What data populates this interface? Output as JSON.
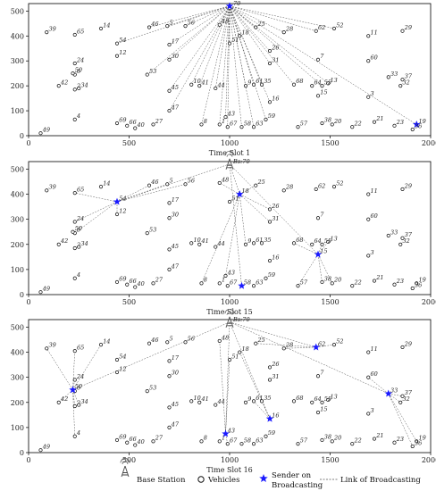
{
  "chart_data": [
    {
      "type": "scatter",
      "xlabel": "Time Slot 1",
      "xlim": [
        0,
        2000
      ],
      "ylim": [
        0,
        530
      ],
      "xticks": [
        0,
        500,
        1000,
        1500,
        2000
      ],
      "yticks": [
        0,
        100,
        200,
        300,
        400,
        500
      ],
      "base_station": {
        "x": 1000,
        "y": 520,
        "label": "70"
      },
      "base_station_label_visible": false,
      "senders": [
        19
      ],
      "links": [
        [
          "bs",
          54
        ],
        [
          "bs",
          46
        ],
        [
          "bs",
          5
        ],
        [
          "bs",
          56
        ],
        [
          "bs",
          17
        ],
        [
          "bs",
          30
        ],
        [
          "bs",
          53
        ],
        [
          "bs",
          48
        ],
        [
          "bs",
          41
        ],
        [
          "bs",
          10
        ],
        [
          "bs",
          45
        ],
        [
          "bs",
          47
        ],
        [
          "bs",
          44
        ],
        [
          "bs",
          1
        ],
        [
          "bs",
          8
        ],
        [
          "bs",
          43
        ],
        [
          "bs",
          51
        ],
        [
          "bs",
          67
        ],
        [
          "bs",
          58
        ],
        [
          "bs",
          63
        ],
        [
          "bs",
          18
        ],
        [
          "bs",
          9
        ],
        [
          "bs",
          61
        ],
        [
          "bs",
          35
        ],
        [
          "bs",
          25
        ],
        [
          "bs",
          16
        ],
        [
          "bs",
          59
        ],
        [
          "bs",
          26
        ],
        [
          "bs",
          31
        ],
        [
          "bs",
          68
        ],
        [
          "bs",
          28
        ],
        [
          "bs",
          55
        ],
        [
          "bs",
          13
        ],
        [
          "bs",
          62
        ],
        [
          "bs",
          52
        ],
        [
          "bs",
          19
        ]
      ]
    },
    {
      "type": "scatter",
      "xlabel": "Time Slot 15",
      "xlim": [
        0,
        2000
      ],
      "ylim": [
        0,
        530
      ],
      "xticks": [
        0,
        500,
        1000,
        1500,
        2000
      ],
      "yticks": [
        0,
        100,
        200,
        300,
        400,
        500
      ],
      "base_station": {
        "x": 1000,
        "y": 520,
        "label": "70"
      },
      "base_station_label_visible": true,
      "senders": [
        54,
        18,
        15,
        58
      ],
      "links": [
        [
          "bs",
          54
        ],
        [
          "bs",
          18
        ],
        [
          "bs",
          15
        ],
        [
          "bs",
          58
        ],
        [
          54,
          65
        ],
        [
          54,
          24
        ],
        [
          54,
          6
        ],
        [
          54,
          12
        ],
        [
          54,
          5
        ],
        [
          54,
          46
        ],
        [
          54,
          56
        ],
        [
          18,
          51
        ],
        [
          18,
          26
        ],
        [
          18,
          31
        ],
        [
          18,
          25
        ],
        [
          18,
          48
        ],
        [
          18,
          8
        ],
        [
          18,
          43
        ],
        [
          18,
          9
        ],
        [
          15,
          55
        ],
        [
          15,
          13
        ],
        [
          15,
          68
        ],
        [
          15,
          38
        ],
        [
          15,
          20
        ],
        [
          15,
          57
        ]
      ]
    },
    {
      "type": "scatter",
      "xlabel": "Time Slot 16",
      "xlim": [
        0,
        2000
      ],
      "ylim": [
        0,
        530
      ],
      "xticks": [
        0,
        500,
        1000,
        1500,
        2000
      ],
      "yticks": [
        0,
        100,
        200,
        300,
        400,
        500
      ],
      "base_station": {
        "x": 1000,
        "y": 520,
        "label": "70"
      },
      "base_station_label_visible": true,
      "senders": [
        50,
        62,
        16,
        43,
        33
      ],
      "links": [
        [
          "bs",
          62
        ],
        [
          "bs",
          16
        ],
        [
          "bs",
          43
        ],
        [
          "bs",
          50
        ],
        [
          "bs",
          33
        ],
        [
          50,
          39
        ],
        [
          50,
          65
        ],
        [
          50,
          14
        ],
        [
          50,
          24
        ],
        [
          50,
          6
        ],
        [
          50,
          42
        ],
        [
          50,
          34
        ],
        [
          50,
          2
        ],
        [
          50,
          4
        ],
        [
          62,
          25
        ],
        [
          62,
          28
        ],
        [
          62,
          52
        ],
        [
          16,
          18
        ],
        [
          16,
          35
        ],
        [
          16,
          61
        ],
        [
          43,
          51
        ],
        [
          43,
          48
        ],
        [
          43,
          67
        ],
        [
          33,
          37
        ],
        [
          33,
          32
        ],
        [
          33,
          60
        ],
        [
          33,
          19
        ],
        [
          33,
          36
        ]
      ]
    }
  ],
  "vehicles": [
    {
      "id": 1,
      "x": 950,
      "y": 45
    },
    {
      "id": 2,
      "x": 230,
      "y": 185
    },
    {
      "id": 3,
      "x": 1690,
      "y": 155
    },
    {
      "id": 4,
      "x": 230,
      "y": 65
    },
    {
      "id": 5,
      "x": 690,
      "y": 440
    },
    {
      "id": 6,
      "x": 230,
      "y": 245
    },
    {
      "id": 7,
      "x": 1440,
      "y": 305
    },
    {
      "id": 8,
      "x": 860,
      "y": 45
    },
    {
      "id": 9,
      "x": 1080,
      "y": 200
    },
    {
      "id": 10,
      "x": 810,
      "y": 205
    },
    {
      "id": 11,
      "x": 1690,
      "y": 400
    },
    {
      "id": 12,
      "x": 440,
      "y": 320
    },
    {
      "id": 13,
      "x": 1490,
      "y": 210
    },
    {
      "id": 14,
      "x": 360,
      "y": 430
    },
    {
      "id": 15,
      "x": 1440,
      "y": 160
    },
    {
      "id": 16,
      "x": 1200,
      "y": 135
    },
    {
      "id": 17,
      "x": 700,
      "y": 365
    },
    {
      "id": 18,
      "x": 1050,
      "y": 400
    },
    {
      "id": 19,
      "x": 1930,
      "y": 45
    },
    {
      "id": 20,
      "x": 1510,
      "y": 45
    },
    {
      "id": 21,
      "x": 1720,
      "y": 55
    },
    {
      "id": 22,
      "x": 1610,
      "y": 35
    },
    {
      "id": 23,
      "x": 1820,
      "y": 40
    },
    {
      "id": 24,
      "x": 230,
      "y": 290
    },
    {
      "id": 25,
      "x": 1130,
      "y": 435
    },
    {
      "id": 26,
      "x": 1200,
      "y": 340
    },
    {
      "id": 27,
      "x": 620,
      "y": 45
    },
    {
      "id": 28,
      "x": 1270,
      "y": 415
    },
    {
      "id": 29,
      "x": 1860,
      "y": 420
    },
    {
      "id": 30,
      "x": 700,
      "y": 305
    },
    {
      "id": 31,
      "x": 1200,
      "y": 290
    },
    {
      "id": 32,
      "x": 1850,
      "y": 200
    },
    {
      "id": 33,
      "x": 1790,
      "y": 235
    },
    {
      "id": 34,
      "x": 250,
      "y": 190
    },
    {
      "id": 35,
      "x": 1160,
      "y": 205
    },
    {
      "id": 36,
      "x": 1910,
      "y": 25
    },
    {
      "id": 37,
      "x": 1860,
      "y": 225
    },
    {
      "id": 38,
      "x": 1460,
      "y": 50
    },
    {
      "id": 39,
      "x": 90,
      "y": 415
    },
    {
      "id": 40,
      "x": 530,
      "y": 30
    },
    {
      "id": 41,
      "x": 850,
      "y": 200
    },
    {
      "id": 42,
      "x": 150,
      "y": 200
    },
    {
      "id": 43,
      "x": 980,
      "y": 75
    },
    {
      "id": 44,
      "x": 930,
      "y": 190
    },
    {
      "id": 45,
      "x": 700,
      "y": 180
    },
    {
      "id": 46,
      "x": 600,
      "y": 435
    },
    {
      "id": 47,
      "x": 700,
      "y": 100
    },
    {
      "id": 48,
      "x": 950,
      "y": 445
    },
    {
      "id": 49,
      "x": 60,
      "y": 10
    },
    {
      "id": 50,
      "x": 220,
      "y": 250
    },
    {
      "id": 51,
      "x": 1000,
      "y": 370
    },
    {
      "id": 52,
      "x": 1520,
      "y": 430
    },
    {
      "id": 53,
      "x": 590,
      "y": 245
    },
    {
      "id": 54,
      "x": 440,
      "y": 370
    },
    {
      "id": 55,
      "x": 1460,
      "y": 200
    },
    {
      "id": 56,
      "x": 780,
      "y": 440
    },
    {
      "id": 57,
      "x": 1340,
      "y": 35
    },
    {
      "id": 58,
      "x": 1060,
      "y": 35
    },
    {
      "id": 59,
      "x": 1180,
      "y": 65
    },
    {
      "id": 60,
      "x": 1690,
      "y": 300
    },
    {
      "id": 61,
      "x": 1120,
      "y": 205
    },
    {
      "id": 62,
      "x": 1430,
      "y": 420
    },
    {
      "id": 63,
      "x": 1120,
      "y": 35
    },
    {
      "id": 64,
      "x": 1410,
      "y": 200
    },
    {
      "id": 65,
      "x": 230,
      "y": 405
    },
    {
      "id": 66,
      "x": 490,
      "y": 40
    },
    {
      "id": 67,
      "x": 990,
      "y": 35
    },
    {
      "id": 68,
      "x": 1320,
      "y": 205
    },
    {
      "id": 69,
      "x": 440,
      "y": 50
    }
  ],
  "legend": {
    "base_station": "Base Station",
    "vehicles": "Vehicles",
    "sender_line1": "Sender on",
    "sender_line2": "Broadcasting",
    "link": "Link of Broadcasting"
  },
  "colors": {
    "sender": "#1a1aff",
    "link": "#555555",
    "vehicle": "#111111",
    "axis": "#000000"
  }
}
